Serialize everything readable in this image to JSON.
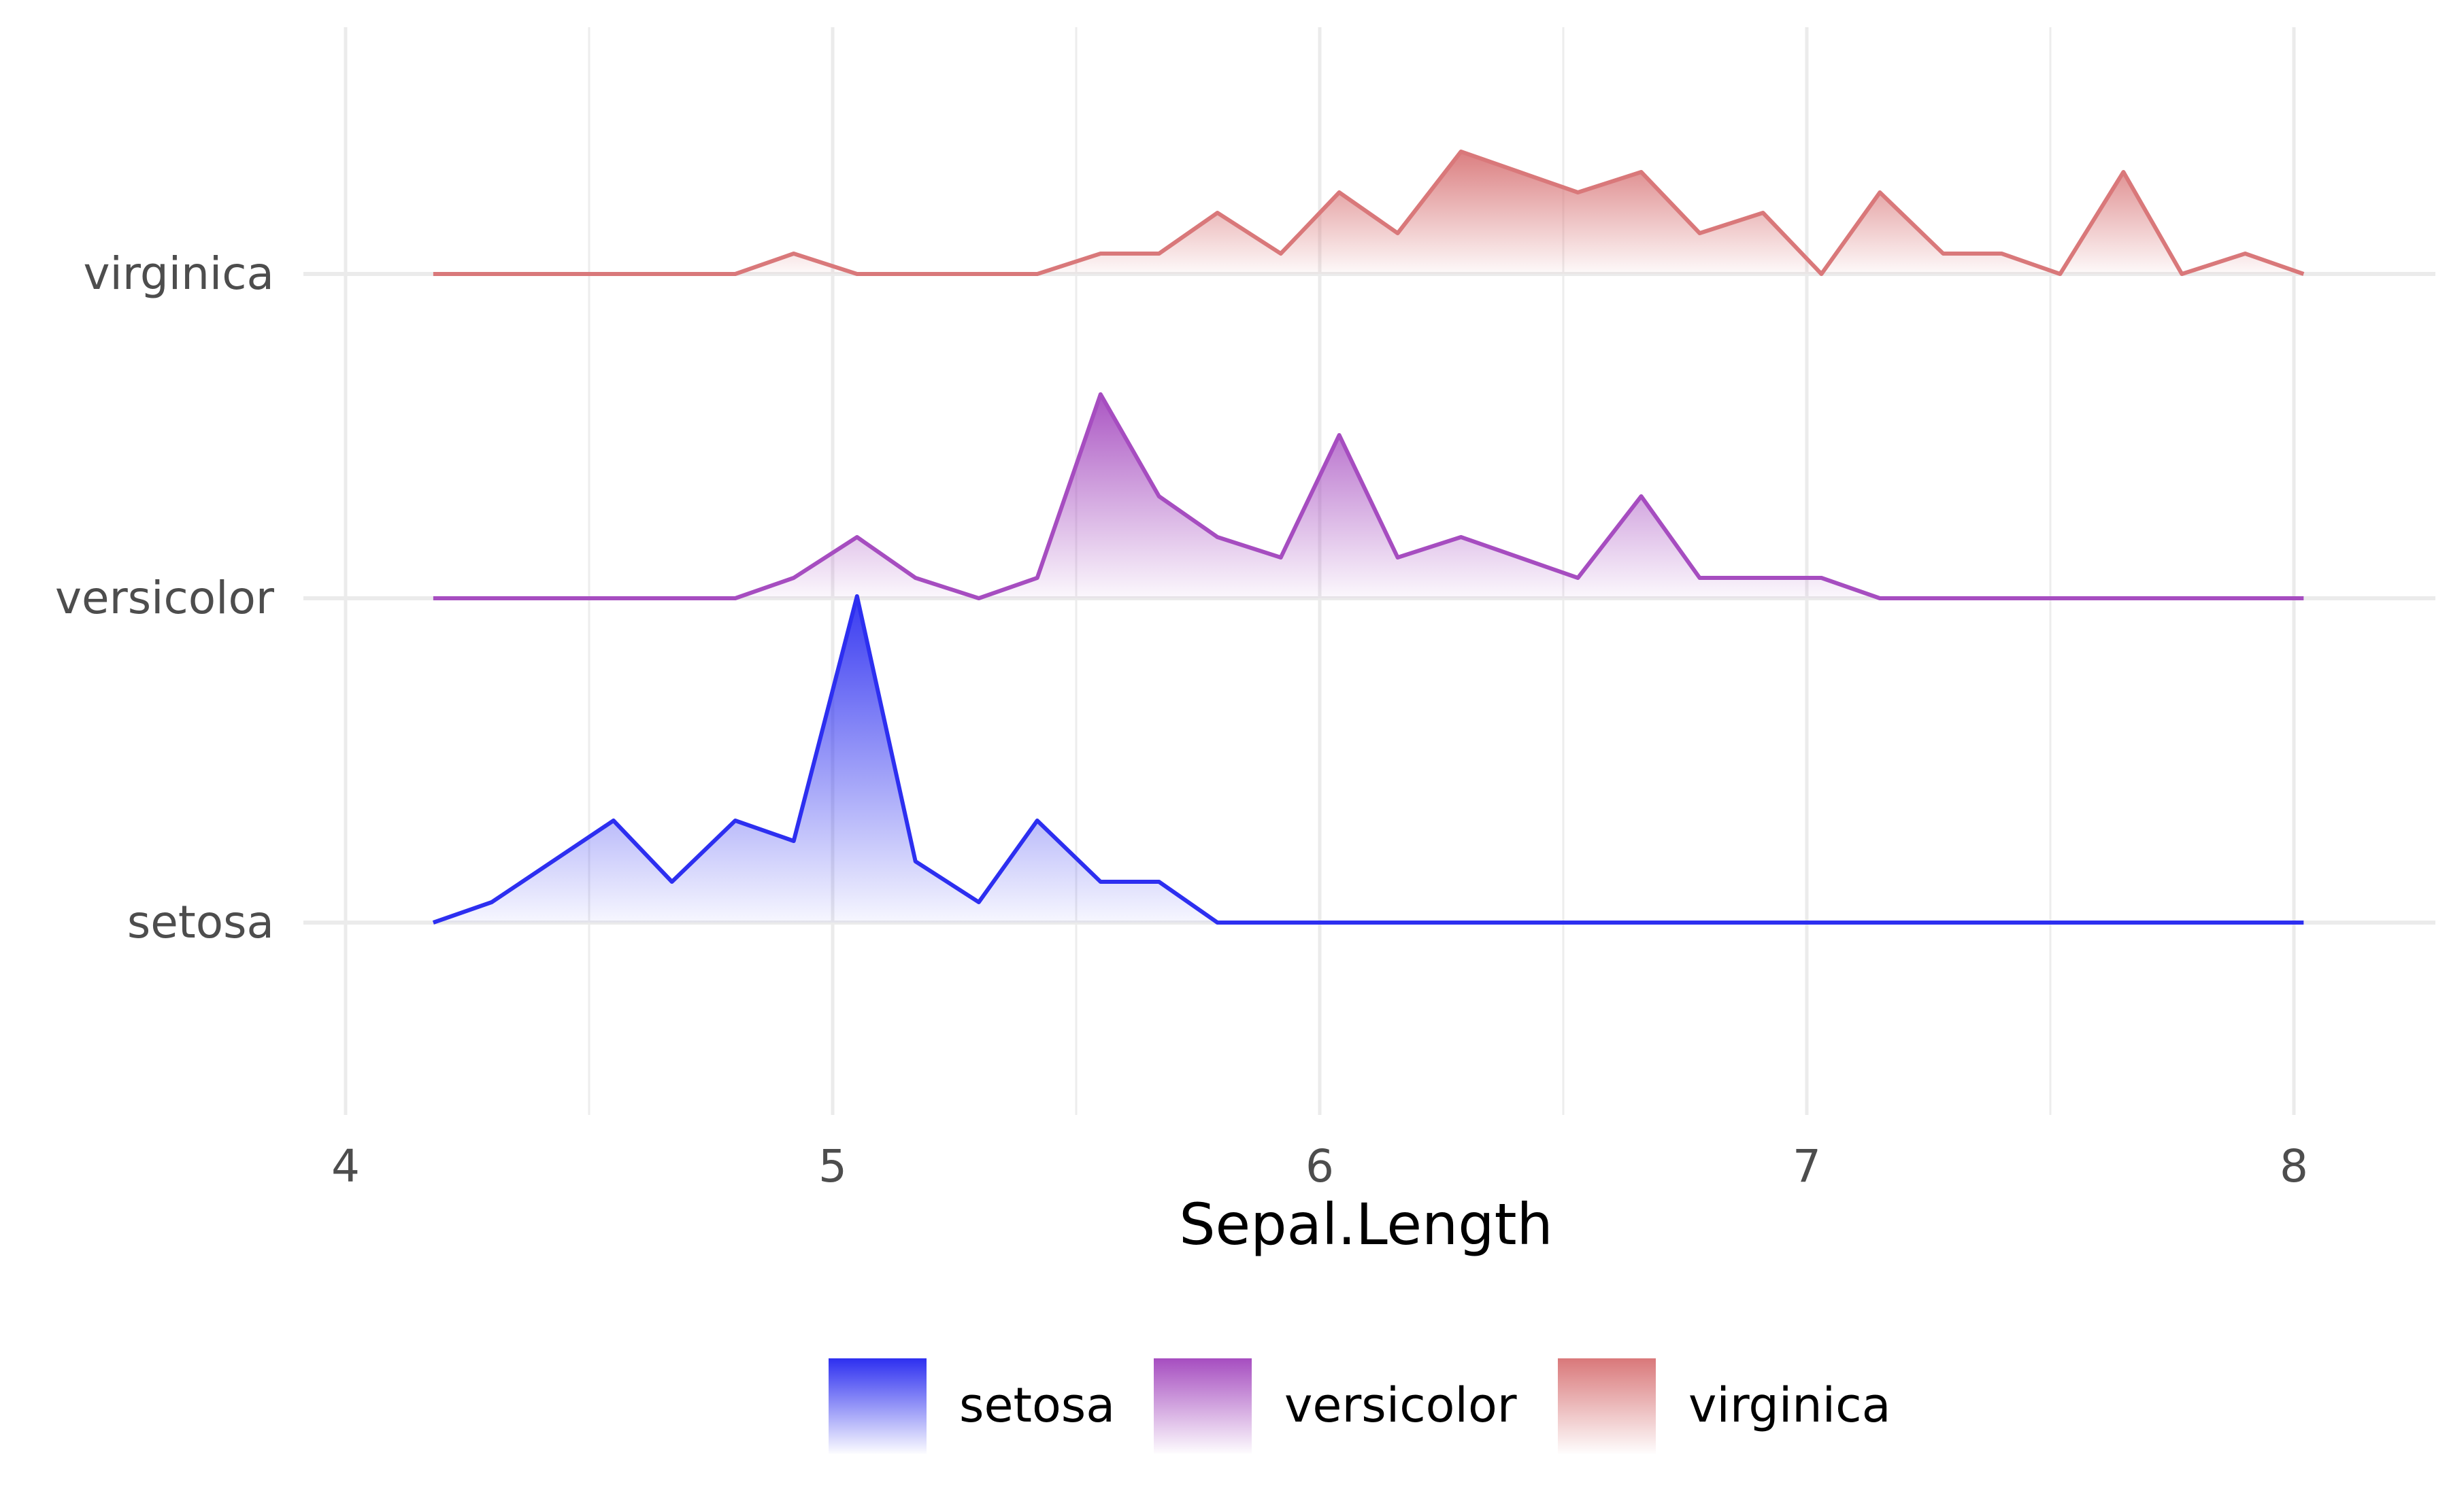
{
  "chart_data": {
    "type": "ridgeline",
    "xlabel": "Sepal.Length",
    "xlim": [
      3.98,
      8.28
    ],
    "x_ticks": [
      "4",
      "5",
      "6",
      "7",
      "8"
    ],
    "y_categories": [
      "setosa",
      "versicolor",
      "virginica"
    ],
    "grid": true,
    "legend_position": "bottom",
    "x": [
      4.18,
      4.3,
      4.55,
      4.67,
      4.8,
      4.92,
      5.05,
      5.17,
      5.3,
      5.42,
      5.55,
      5.67,
      5.79,
      5.92,
      6.04,
      6.16,
      6.29,
      6.41,
      6.53,
      6.66,
      6.78,
      6.91,
      7.03,
      7.15,
      7.28,
      7.4,
      7.52,
      7.65,
      7.77,
      7.9,
      8.02
    ],
    "series": [
      {
        "name": "setosa",
        "color": "#2d2ff0",
        "values": [
          0,
          0.125,
          0.625,
          0.25,
          0.625,
          0.5,
          2.0,
          0.375,
          0.125,
          0.625,
          0.25,
          0.25,
          0,
          0,
          0,
          0,
          0,
          0,
          0,
          0,
          0,
          0,
          0,
          0,
          0,
          0,
          0,
          0,
          0,
          0,
          0
        ]
      },
      {
        "name": "versicolor",
        "color": "#a64dc0",
        "values": [
          0,
          0,
          0,
          0,
          0,
          0.125,
          0.375,
          0.125,
          0,
          0.125,
          1.25,
          0.625,
          0.375,
          0.25,
          1.0,
          0.25,
          0.375,
          0.25,
          0.125,
          0.625,
          0.125,
          0.125,
          0.125,
          0,
          0,
          0,
          0,
          0,
          0,
          0,
          0
        ]
      },
      {
        "name": "virginica",
        "color": "#d9787a",
        "values": [
          0,
          0,
          0,
          0,
          0,
          0.125,
          0,
          0,
          0,
          0,
          0.125,
          0.125,
          0.375,
          0.125,
          0.5,
          0.25,
          0.75,
          0.625,
          0.5,
          0.625,
          0.25,
          0.375,
          0,
          0.5,
          0.125,
          0.125,
          0,
          0.625,
          0,
          0.125,
          0
        ]
      }
    ]
  }
}
